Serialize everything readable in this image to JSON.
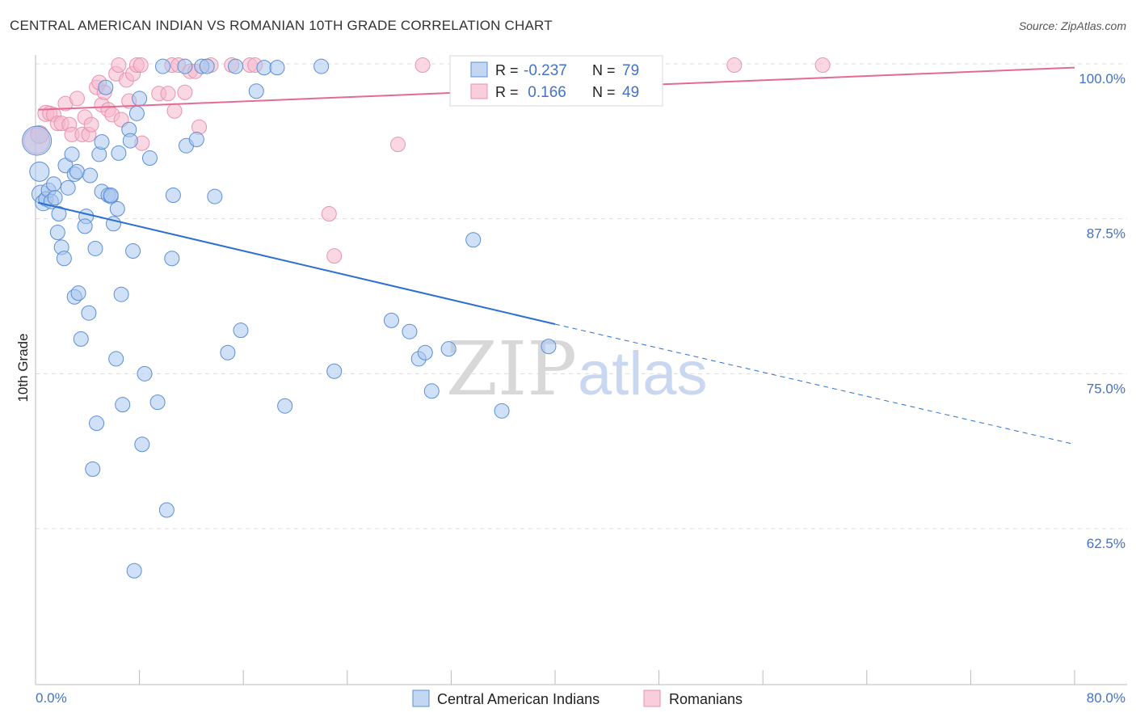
{
  "title": "CENTRAL AMERICAN INDIAN VS ROMANIAN 10TH GRADE CORRELATION CHART",
  "source": "Source: ZipAtlas.com",
  "watermark": {
    "zip": "ZIP",
    "atlas": "atlas"
  },
  "colors": {
    "blue_fill": "#a9c6ee",
    "blue_stroke": "#5b8fd6",
    "blue_line": "#2b6fd0",
    "pink_fill": "#f6b8cc",
    "pink_stroke": "#e893ae",
    "pink_line": "#e56a92",
    "axis_text": "#4472c4",
    "grid": "#dddddd"
  },
  "legend": {
    "rows": [
      {
        "r_label": "R = ",
        "r_value": "-0.237",
        "n_label": "N = ",
        "n_value": "79",
        "color": "blue"
      },
      {
        "r_label": "R = ",
        "r_value": " 0.166",
        "n_label": "N = ",
        "n_value": "49",
        "color": "pink"
      }
    ]
  },
  "bottom_legend": [
    {
      "label": "Central American Indians",
      "color": "blue"
    },
    {
      "label": "Romanians",
      "color": "pink"
    }
  ],
  "chart_data": {
    "type": "scatter",
    "title": "CENTRAL AMERICAN INDIAN VS ROMANIAN 10TH GRADE CORRELATION CHART",
    "xlabel": "",
    "ylabel": "10th Grade",
    "xlim": [
      0,
      80
    ],
    "ylim": [
      51,
      101
    ],
    "x_tick_labels": [
      "0.0%",
      "80.0%"
    ],
    "y_ticks": [
      62.5,
      75.0,
      87.5,
      100.0
    ],
    "y_tick_labels": [
      "62.5%",
      "75.0%",
      "87.5%",
      "100.0%"
    ],
    "grid": true,
    "legend_position": "top-center",
    "series": [
      {
        "name": "Central American Indians",
        "color": "blue",
        "r": -0.237,
        "n": 79,
        "trend": {
          "x0": 0.2,
          "y0": 88.8,
          "x1": 40,
          "y1": 79.0,
          "x_dash_end": 80,
          "y_dash_end": 69.3
        },
        "points": [
          [
            0.1,
            93.8,
            18
          ],
          [
            0.3,
            91.3,
            12
          ],
          [
            0.4,
            89.5,
            11
          ],
          [
            0.6,
            88.8,
            10
          ],
          [
            0.8,
            89.1,
            9
          ],
          [
            1.0,
            89.8,
            9
          ],
          [
            1.2,
            88.9,
            9
          ],
          [
            1.4,
            90.3,
            9
          ],
          [
            1.5,
            89.2,
            9
          ],
          [
            1.8,
            87.9,
            9
          ],
          [
            1.7,
            86.4,
            9
          ],
          [
            2.0,
            85.2,
            9
          ],
          [
            2.2,
            84.3,
            9
          ],
          [
            2.3,
            91.8,
            9
          ],
          [
            2.5,
            90.0,
            9
          ],
          [
            2.8,
            92.7,
            9
          ],
          [
            3.0,
            91.1,
            9
          ],
          [
            3.2,
            91.3,
            9
          ],
          [
            3.0,
            81.2,
            9
          ],
          [
            3.3,
            81.5,
            9
          ],
          [
            3.5,
            77.8,
            9
          ],
          [
            3.9,
            87.7,
            9
          ],
          [
            3.8,
            86.9,
            9
          ],
          [
            4.1,
            79.9,
            9
          ],
          [
            4.2,
            91.0,
            9
          ],
          [
            4.4,
            67.3,
            9
          ],
          [
            4.6,
            85.1,
            9
          ],
          [
            4.7,
            71.0,
            9
          ],
          [
            4.9,
            92.7,
            9
          ],
          [
            5.1,
            93.7,
            9
          ],
          [
            5.1,
            89.7,
            9
          ],
          [
            5.4,
            98.1,
            9
          ],
          [
            5.6,
            89.4,
            9
          ],
          [
            5.8,
            89.3,
            9
          ],
          [
            6.0,
            87.1,
            9
          ],
          [
            6.2,
            76.2,
            9
          ],
          [
            6.3,
            88.3,
            9
          ],
          [
            6.4,
            92.8,
            9
          ],
          [
            6.6,
            81.4,
            9
          ],
          [
            6.7,
            72.5,
            9
          ],
          [
            7.2,
            94.7,
            9
          ],
          [
            7.3,
            93.8,
            9
          ],
          [
            7.5,
            84.9,
            9
          ],
          [
            7.6,
            59.1,
            9
          ],
          [
            7.8,
            96.0,
            9
          ],
          [
            8.0,
            97.2,
            9
          ],
          [
            8.2,
            69.3,
            9
          ],
          [
            8.4,
            75.0,
            9
          ],
          [
            8.8,
            92.4,
            9
          ],
          [
            9.4,
            72.7,
            9
          ],
          [
            9.8,
            99.8,
            9
          ],
          [
            10.1,
            64.0,
            9
          ],
          [
            10.5,
            84.3,
            9
          ],
          [
            10.6,
            89.4,
            9
          ],
          [
            11.5,
            99.8,
            9
          ],
          [
            11.6,
            93.4,
            9
          ],
          [
            12.4,
            93.9,
            9
          ],
          [
            12.8,
            99.8,
            9
          ],
          [
            13.2,
            99.8,
            9
          ],
          [
            13.8,
            89.3,
            9
          ],
          [
            14.8,
            76.7,
            9
          ],
          [
            15.4,
            99.8,
            9
          ],
          [
            15.8,
            78.5,
            9
          ],
          [
            17.0,
            97.8,
            9
          ],
          [
            17.6,
            99.7,
            9
          ],
          [
            18.6,
            99.7,
            9
          ],
          [
            19.2,
            72.4,
            9
          ],
          [
            22.0,
            99.8,
            9
          ],
          [
            23.0,
            75.2,
            9
          ],
          [
            27.4,
            79.3,
            9
          ],
          [
            28.8,
            78.4,
            9
          ],
          [
            29.5,
            76.2,
            9
          ],
          [
            30.0,
            76.7,
            9
          ],
          [
            30.5,
            73.6,
            9
          ],
          [
            31.8,
            77.0,
            9
          ],
          [
            33.7,
            85.8,
            9
          ],
          [
            35.9,
            72.0,
            9
          ],
          [
            39.5,
            77.2,
            9
          ],
          [
            5.8,
            89.4,
            9
          ]
        ]
      },
      {
        "name": "Romanians",
        "color": "pink",
        "r": 0.166,
        "n": 49,
        "trend": {
          "x0": 0.2,
          "y0": 96.3,
          "x1": 80,
          "y1": 99.7
        },
        "points": [
          [
            0.1,
            93.8,
            16
          ],
          [
            0.3,
            94.3,
            11
          ],
          [
            0.8,
            96.0,
            10
          ],
          [
            1.1,
            96.0,
            9
          ],
          [
            1.4,
            95.9,
            9
          ],
          [
            1.7,
            95.2,
            9
          ],
          [
            2.0,
            95.2,
            9
          ],
          [
            2.3,
            96.8,
            9
          ],
          [
            2.6,
            95.1,
            9
          ],
          [
            2.8,
            94.3,
            9
          ],
          [
            3.2,
            97.2,
            9
          ],
          [
            3.6,
            94.3,
            9
          ],
          [
            3.8,
            95.7,
            9
          ],
          [
            4.1,
            94.3,
            9
          ],
          [
            4.3,
            95.1,
            9
          ],
          [
            4.7,
            98.1,
            9
          ],
          [
            4.9,
            98.5,
            9
          ],
          [
            5.1,
            96.7,
            9
          ],
          [
            5.3,
            97.7,
            9
          ],
          [
            5.6,
            96.3,
            9
          ],
          [
            5.9,
            95.9,
            9
          ],
          [
            6.2,
            99.2,
            9
          ],
          [
            6.4,
            99.9,
            9
          ],
          [
            6.6,
            95.5,
            9
          ],
          [
            7.0,
            98.7,
            9
          ],
          [
            7.2,
            97.0,
            9
          ],
          [
            7.5,
            99.2,
            9
          ],
          [
            7.8,
            99.9,
            9
          ],
          [
            8.1,
            99.9,
            9
          ],
          [
            8.2,
            93.6,
            9
          ],
          [
            9.5,
            97.6,
            9
          ],
          [
            10.2,
            97.6,
            9
          ],
          [
            10.5,
            99.9,
            9
          ],
          [
            10.7,
            96.2,
            9
          ],
          [
            11.0,
            99.9,
            9
          ],
          [
            11.5,
            97.7,
            9
          ],
          [
            11.9,
            99.4,
            9
          ],
          [
            12.3,
            99.4,
            9
          ],
          [
            12.6,
            94.9,
            9
          ],
          [
            13.5,
            99.9,
            9
          ],
          [
            15.1,
            99.9,
            9
          ],
          [
            16.5,
            99.9,
            9
          ],
          [
            16.9,
            99.9,
            9
          ],
          [
            22.6,
            87.9,
            9
          ],
          [
            23.0,
            84.5,
            9
          ],
          [
            27.9,
            93.5,
            9
          ],
          [
            29.8,
            99.9,
            9
          ],
          [
            53.8,
            99.9,
            9
          ],
          [
            60.6,
            99.9,
            9
          ]
        ]
      }
    ]
  }
}
